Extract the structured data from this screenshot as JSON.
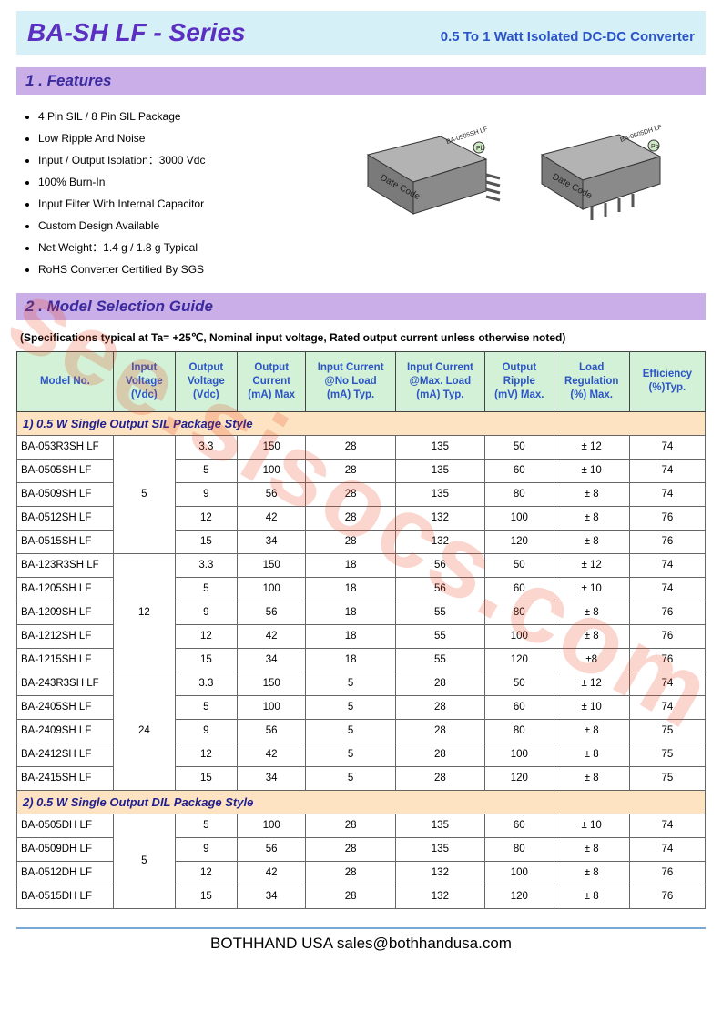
{
  "title": "BA-SH LF - Series",
  "subtitle": "0.5 To 1 Watt Isolated DC-DC Converter",
  "section1_header": "1 . Features",
  "features": [
    "4 Pin SIL / 8 Pin SIL Package",
    "Low Ripple And Noise",
    "Input / Output Isolation：3000 Vdc",
    "100% Burn-In",
    "Input Filter With Internal Capacitor",
    "Custom Design Available",
    "Net Weight：1.4 g / 1.8 g    Typical",
    "RoHS Converter Certified By SGS"
  ],
  "chip1_label": "BA-0505SH LF",
  "chip2_label": "BA-0505DH LF",
  "datecode": "Date Code",
  "section2_header": "2 . Model Selection Guide",
  "spec_note": "(Specifications typical at Ta= +25℃, Nominal input voltage, Rated output current unless otherwise noted)",
  "table_headers": [
    "Model No.",
    "Input Voltage (Vdc)",
    "Output Voltage (Vdc)",
    "Output Current (mA) Max",
    "Input Current @No Load (mA) Typ.",
    "Input Current @Max. Load (mA) Typ.",
    "Output Ripple (mV) Max.",
    "Load Regulation (%) Max.",
    "Efficiency (%)Typ."
  ],
  "group1_title": "1) 0.5 W Single Output SIL Package Style",
  "group1_rows": [
    {
      "model": "BA-053R3SH LF",
      "vin": "5",
      "vout": "3.3",
      "iout": "150",
      "inl": "28",
      "iml": "135",
      "rip": "50",
      "reg": "± 12",
      "eff": "74",
      "vin_span": 5
    },
    {
      "model": "BA-0505SH LF",
      "vout": "5",
      "iout": "100",
      "inl": "28",
      "iml": "135",
      "rip": "60",
      "reg": "± 10",
      "eff": "74"
    },
    {
      "model": "BA-0509SH LF",
      "vout": "9",
      "iout": "56",
      "inl": "28",
      "iml": "135",
      "rip": "80",
      "reg": "± 8",
      "eff": "74"
    },
    {
      "model": "BA-0512SH LF",
      "vout": "12",
      "iout": "42",
      "inl": "28",
      "iml": "132",
      "rip": "100",
      "reg": "± 8",
      "eff": "76"
    },
    {
      "model": "BA-0515SH LF",
      "vout": "15",
      "iout": "34",
      "inl": "28",
      "iml": "132",
      "rip": "120",
      "reg": "± 8",
      "eff": "76"
    },
    {
      "model": "BA-123R3SH LF",
      "vin": "12",
      "vout": "3.3",
      "iout": "150",
      "inl": "18",
      "iml": "56",
      "rip": "50",
      "reg": "± 12",
      "eff": "74",
      "vin_span": 5
    },
    {
      "model": "BA-1205SH LF",
      "vout": "5",
      "iout": "100",
      "inl": "18",
      "iml": "56",
      "rip": "60",
      "reg": "± 10",
      "eff": "74"
    },
    {
      "model": "BA-1209SH LF",
      "vout": "9",
      "iout": "56",
      "inl": "18",
      "iml": "55",
      "rip": "80",
      "reg": "± 8",
      "eff": "76"
    },
    {
      "model": "BA-1212SH LF",
      "vout": "12",
      "iout": "42",
      "inl": "18",
      "iml": "55",
      "rip": "100",
      "reg": "± 8",
      "eff": "76"
    },
    {
      "model": "BA-1215SH LF",
      "vout": "15",
      "iout": "34",
      "inl": "18",
      "iml": "55",
      "rip": "120",
      "reg": "±8",
      "eff": "76"
    },
    {
      "model": "BA-243R3SH LF",
      "vin": "24",
      "vout": "3.3",
      "iout": "150",
      "inl": "5",
      "iml": "28",
      "rip": "50",
      "reg": "± 12",
      "eff": "74",
      "vin_span": 5
    },
    {
      "model": "BA-2405SH LF",
      "vout": "5",
      "iout": "100",
      "inl": "5",
      "iml": "28",
      "rip": "60",
      "reg": "± 10",
      "eff": "74"
    },
    {
      "model": "BA-2409SH LF",
      "vout": "9",
      "iout": "56",
      "inl": "5",
      "iml": "28",
      "rip": "80",
      "reg": "± 8",
      "eff": "75"
    },
    {
      "model": "BA-2412SH LF",
      "vout": "12",
      "iout": "42",
      "inl": "5",
      "iml": "28",
      "rip": "100",
      "reg": "± 8",
      "eff": "75"
    },
    {
      "model": "BA-2415SH LF",
      "vout": "15",
      "iout": "34",
      "inl": "5",
      "iml": "28",
      "rip": "120",
      "reg": "± 8",
      "eff": "75"
    }
  ],
  "group2_title": "2) 0.5 W Single Output DIL Package Style",
  "group2_rows": [
    {
      "model": "BA-0505DH LF",
      "vin": "5",
      "vout": "5",
      "iout": "100",
      "inl": "28",
      "iml": "135",
      "rip": "60",
      "reg": "± 10",
      "eff": "74",
      "vin_span": 4
    },
    {
      "model": "BA-0509DH LF",
      "vout": "9",
      "iout": "56",
      "inl": "28",
      "iml": "135",
      "rip": "80",
      "reg": "± 8",
      "eff": "74"
    },
    {
      "model": "BA-0512DH LF",
      "vout": "12",
      "iout": "42",
      "inl": "28",
      "iml": "132",
      "rip": "100",
      "reg": "± 8",
      "eff": "76"
    },
    {
      "model": "BA-0515DH LF",
      "vout": "15",
      "iout": "34",
      "inl": "28",
      "iml": "132",
      "rip": "120",
      "reg": "± 8",
      "eff": "76"
    }
  ],
  "footer": "BOTHHAND USA  sales@bothhandusa.com",
  "watermark_text": "see.sisocs.com",
  "colors": {
    "title_bg": "#d6f0f7",
    "title_text": "#5b2fc1",
    "subtitle_text": "#2b55c7",
    "section_bg": "#c9aee8",
    "section_text": "#3a2a9e",
    "th_bg": "#d3f1d6",
    "th_text": "#2b55c7",
    "group_bg": "#fde3c1",
    "group_text": "#1f1f8f",
    "watermark": "rgba(230,70,30,0.22)",
    "footer_border": "#7aa8d4",
    "chip_body": "#8a8a8a",
    "chip_top": "#b3b3b3"
  }
}
